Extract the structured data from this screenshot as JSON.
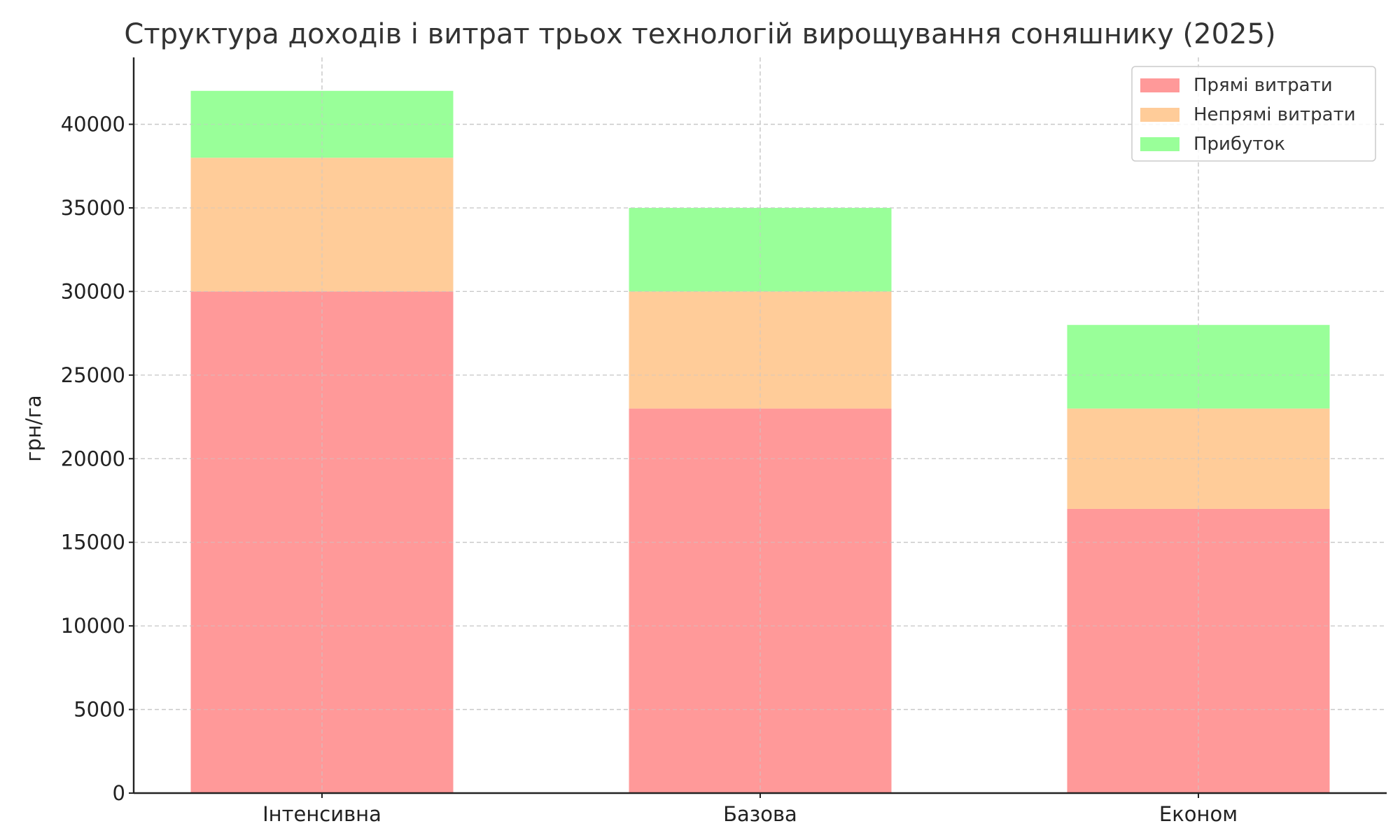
{
  "chart_data": {
    "type": "bar",
    "stacked": true,
    "title": "Структура доходів і витрат трьох технологій вирощування соняшнику (2025)",
    "xlabel": "",
    "ylabel": "грн/га",
    "categories": [
      "Інтенсивна",
      "Базова",
      "Економ"
    ],
    "series": [
      {
        "name": "Прямі витрати",
        "values": [
          30000,
          23000,
          17000
        ],
        "color": "#ff9999"
      },
      {
        "name": "Непрямі витрати",
        "values": [
          8000,
          7000,
          6000
        ],
        "color": "#ffcc99"
      },
      {
        "name": "Прибуток",
        "values": [
          4000,
          5000,
          5000
        ],
        "color": "#99ff99"
      }
    ],
    "ylim": [
      0,
      44000
    ],
    "yticks": [
      0,
      5000,
      10000,
      15000,
      20000,
      25000,
      30000,
      35000,
      40000
    ],
    "grid": true,
    "legend_position": "top-right"
  }
}
